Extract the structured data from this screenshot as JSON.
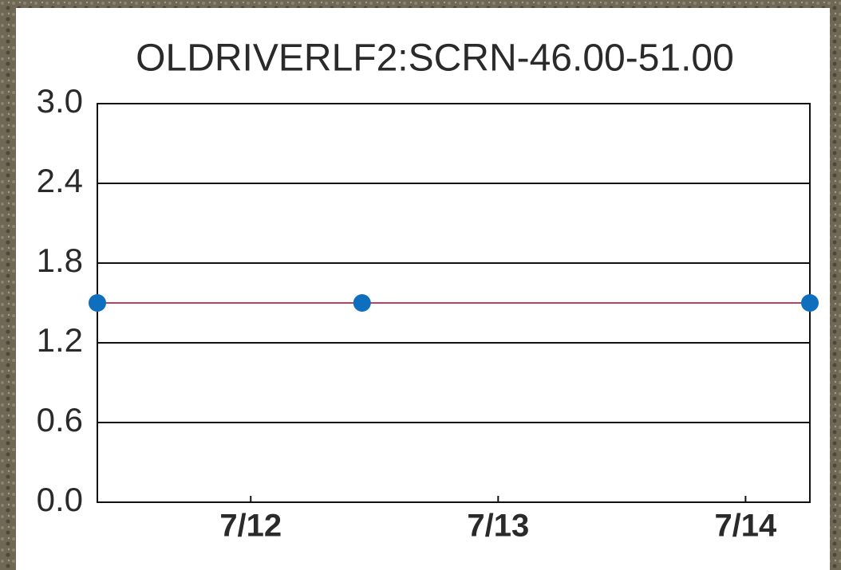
{
  "chart_data": {
    "type": "line",
    "title": "OLDRIVERLF2:SCRN-46.00-51.00",
    "x": [
      11.38,
      12.45,
      14.26
    ],
    "series": [
      {
        "values": [
          1.5,
          1.5,
          1.5
        ],
        "color": "#c0405a",
        "marker_color": "#0f6fbf"
      }
    ],
    "xlim": [
      11.38,
      14.26
    ],
    "xticks": [
      {
        "value": 12,
        "label": "7/12"
      },
      {
        "value": 13,
        "label": "7/13"
      },
      {
        "value": 14,
        "label": "7/14"
      }
    ],
    "ylim": [
      0,
      3
    ],
    "yticks": [
      {
        "value": 0,
        "label": "0.0"
      },
      0.6,
      1.2,
      1.8,
      2.4,
      {
        "value": 3,
        "label": "3.0"
      }
    ],
    "grid": true
  }
}
